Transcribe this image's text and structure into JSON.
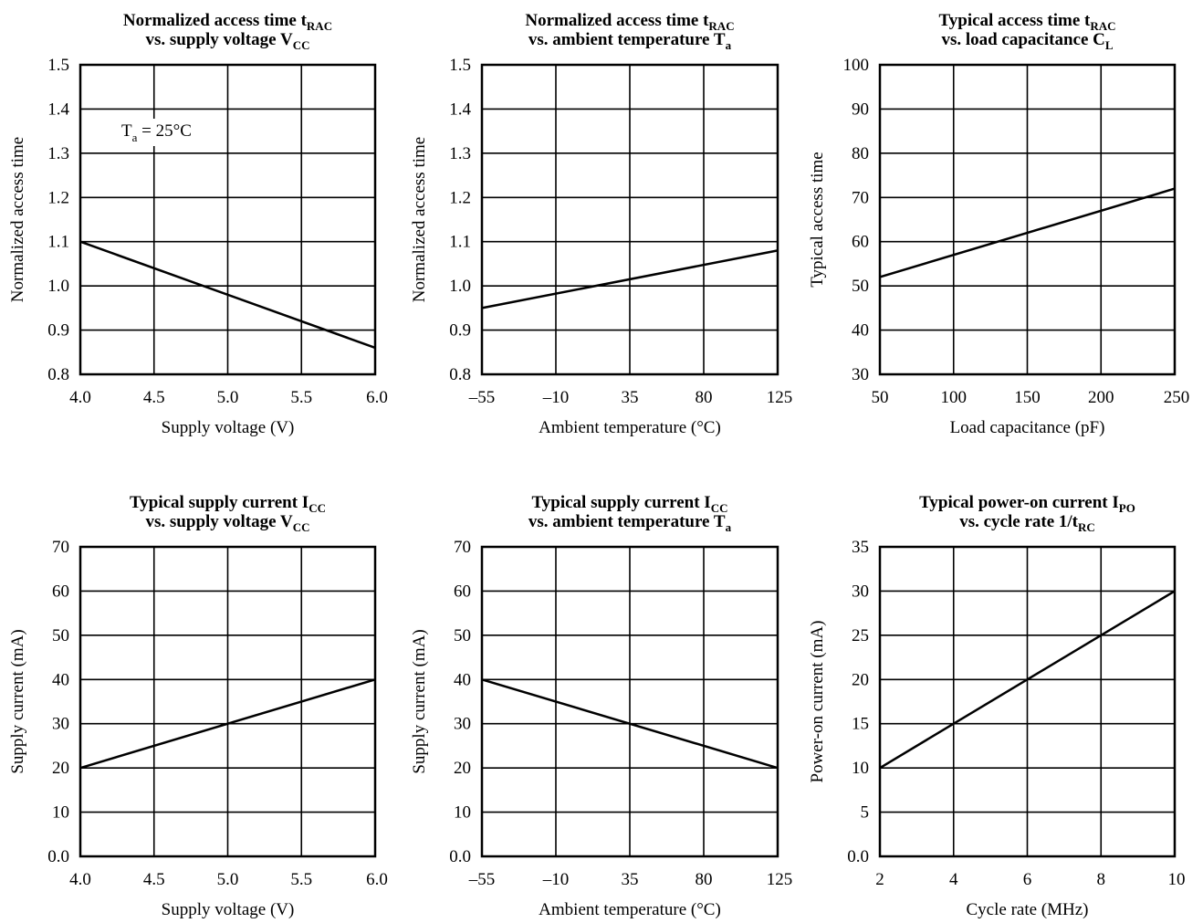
{
  "chart_data": [
    {
      "type": "line",
      "title": [
        {
          "text": "Normalized access time t"
        },
        {
          "text": "RAC",
          "sub": true
        }
      ],
      "title2": [
        {
          "text": "vs. supply voltage V"
        },
        {
          "text": "CC",
          "sub": true
        }
      ],
      "xlabel": "Supply voltage (V)",
      "ylabel": "Normalized access time",
      "xlim": [
        4.0,
        6.0
      ],
      "ylim": [
        0.8,
        1.5
      ],
      "xticks": [
        "4.0",
        "4.5",
        "5.0",
        "5.5",
        "6.0"
      ],
      "yticks": [
        "0.8",
        "0.9",
        "1.0",
        "1.1",
        "1.2",
        "1.3",
        "1.4",
        "1.5"
      ],
      "grid": true,
      "annotation": [
        {
          "text": "T"
        },
        {
          "text": "a",
          "sub": true
        },
        {
          "text": " = 25°C"
        }
      ],
      "series": [
        {
          "x": [
            4.0,
            6.0
          ],
          "y": [
            1.1,
            0.86
          ]
        }
      ]
    },
    {
      "type": "line",
      "title": [
        {
          "text": "Normalized access time t"
        },
        {
          "text": "RAC",
          "sub": true
        }
      ],
      "title2": [
        {
          "text": "vs. ambient temperature T"
        },
        {
          "text": "a",
          "sub": true
        }
      ],
      "xlabel": "Ambient temperature (°C)",
      "ylabel": "Normalized access time",
      "xlim": [
        -55,
        125
      ],
      "ylim": [
        0.8,
        1.5
      ],
      "xticks": [
        "–55",
        "–10",
        "35",
        "80",
        "125"
      ],
      "yticks": [
        "0.8",
        "0.9",
        "1.0",
        "1.1",
        "1.2",
        "1.3",
        "1.4",
        "1.5"
      ],
      "grid": true,
      "series": [
        {
          "x": [
            -55,
            125
          ],
          "y": [
            0.95,
            1.08
          ]
        }
      ]
    },
    {
      "type": "line",
      "title": [
        {
          "text": "Typical access time t"
        },
        {
          "text": "RAC",
          "sub": true
        }
      ],
      "title2": [
        {
          "text": "vs. load capacitance C"
        },
        {
          "text": "L",
          "sub": true
        }
      ],
      "xlabel": "Load capacitance (pF)",
      "ylabel": "Typical access time",
      "xlim": [
        50,
        250
      ],
      "ylim": [
        30,
        100
      ],
      "xticks": [
        "50",
        "100",
        "150",
        "200",
        "250"
      ],
      "yticks": [
        "30",
        "40",
        "50",
        "60",
        "70",
        "80",
        "90",
        "100"
      ],
      "grid": true,
      "series": [
        {
          "x": [
            50,
            250
          ],
          "y": [
            52,
            72
          ]
        }
      ]
    },
    {
      "type": "line",
      "title": [
        {
          "text": "Typical supply current I"
        },
        {
          "text": "CC",
          "sub": true
        }
      ],
      "title2": [
        {
          "text": "vs. supply voltage V"
        },
        {
          "text": "CC",
          "sub": true
        }
      ],
      "xlabel": "Supply voltage (V)",
      "ylabel": "Supply current (mA)",
      "xlim": [
        4.0,
        6.0
      ],
      "ylim": [
        0,
        70
      ],
      "xticks": [
        "4.0",
        "4.5",
        "5.0",
        "5.5",
        "6.0"
      ],
      "yticks": [
        "0.0",
        "10",
        "20",
        "30",
        "40",
        "50",
        "60",
        "70"
      ],
      "grid": true,
      "series": [
        {
          "x": [
            4.0,
            6.0
          ],
          "y": [
            20,
            40
          ]
        }
      ]
    },
    {
      "type": "line",
      "title": [
        {
          "text": "Typical supply current I"
        },
        {
          "text": "CC",
          "sub": true
        }
      ],
      "title2": [
        {
          "text": "vs. ambient temperature T"
        },
        {
          "text": "a",
          "sub": true
        }
      ],
      "xlabel": "Ambient temperature (°C)",
      "ylabel": "Supply current (mA)",
      "xlim": [
        -55,
        125
      ],
      "ylim": [
        0,
        70
      ],
      "xticks": [
        "–55",
        "–10",
        "35",
        "80",
        "125"
      ],
      "yticks": [
        "0.0",
        "10",
        "20",
        "30",
        "40",
        "50",
        "60",
        "70"
      ],
      "grid": true,
      "series": [
        {
          "x": [
            -55,
            125
          ],
          "y": [
            40,
            20
          ]
        }
      ]
    },
    {
      "type": "line",
      "title": [
        {
          "text": "Typical power-on current I"
        },
        {
          "text": "PO",
          "sub": true
        }
      ],
      "title2": [
        {
          "text": "vs. cycle rate 1/t"
        },
        {
          "text": "RC",
          "sub": true
        }
      ],
      "xlabel": "Cycle rate (MHz)",
      "ylabel": "Power-on current (mA)",
      "xlim": [
        2,
        10
      ],
      "ylim": [
        0,
        35
      ],
      "xticks": [
        "2",
        "4",
        "6",
        "8",
        "10"
      ],
      "yticks": [
        "0.0",
        "5",
        "10",
        "15",
        "20",
        "25",
        "30",
        "35"
      ],
      "grid": true,
      "series": [
        {
          "x": [
            2,
            10
          ],
          "y": [
            10,
            30
          ]
        }
      ]
    }
  ]
}
